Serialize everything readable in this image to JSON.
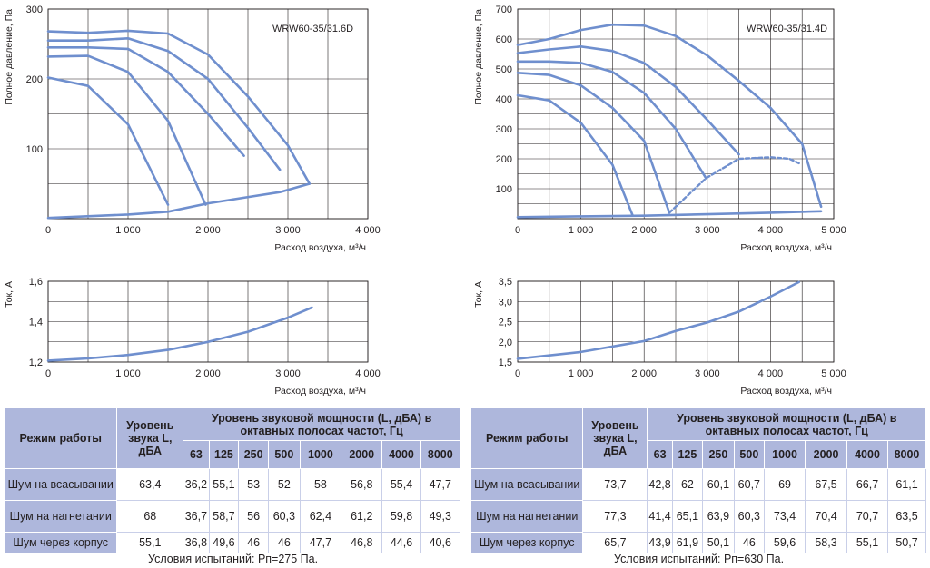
{
  "chart_data": [
    {
      "type": "line",
      "title": "WRW60-35/31.6D",
      "xlabel": "Расход воздуха, м³/ч",
      "ylabel": "Полное давление, Па",
      "xlim": [
        0,
        4000
      ],
      "ylim": [
        0,
        300
      ],
      "xticks": [
        "0",
        "1 000",
        "2 000",
        "3 000",
        "4 000"
      ],
      "yticks": [
        "100",
        "200",
        "300"
      ],
      "grid": true,
      "series": [
        {
          "values": [
            [
              0,
              268
            ],
            [
              500,
              266
            ],
            [
              1000,
              269
            ],
            [
              1500,
              265
            ],
            [
              2000,
              235
            ],
            [
              2500,
              175
            ],
            [
              3000,
              105
            ],
            [
              3270,
              50
            ]
          ]
        },
        {
          "values": [
            [
              0,
              255
            ],
            [
              500,
              255
            ],
            [
              1000,
              258
            ],
            [
              1500,
              240
            ],
            [
              2000,
              200
            ],
            [
              2500,
              130
            ],
            [
              2900,
              70
            ]
          ]
        },
        {
          "values": [
            [
              0,
              245
            ],
            [
              500,
              245
            ],
            [
              1000,
              243
            ],
            [
              1500,
              210
            ],
            [
              2000,
              150
            ],
            [
              2450,
              90
            ]
          ]
        },
        {
          "values": [
            [
              0,
              232
            ],
            [
              500,
              233
            ],
            [
              1000,
              210
            ],
            [
              1500,
              140
            ],
            [
              1970,
              20
            ]
          ]
        },
        {
          "values": [
            [
              0,
              202
            ],
            [
              500,
              190
            ],
            [
              1000,
              135
            ],
            [
              1500,
              20
            ]
          ]
        },
        {
          "values": [
            [
              0,
              1
            ],
            [
              1000,
              6
            ],
            [
              1500,
              10
            ],
            [
              2000,
              22
            ],
            [
              2450,
              30
            ],
            [
              2900,
              38
            ],
            [
              3270,
              50
            ]
          ]
        }
      ]
    },
    {
      "type": "line",
      "title": "WRW60-35/31.4D",
      "xlabel": "Расход воздуха, м³/ч",
      "ylabel": "Полное давление, Па",
      "xlim": [
        0,
        5000
      ],
      "ylim": [
        0,
        700
      ],
      "xticks": [
        "0",
        "1 000",
        "2 000",
        "3 000",
        "4 000",
        "5 000"
      ],
      "yticks": [
        "100",
        "200",
        "300",
        "400",
        "500",
        "600",
        "700"
      ],
      "grid": true,
      "series": [
        {
          "values": [
            [
              0,
              580
            ],
            [
              500,
              600
            ],
            [
              1000,
              630
            ],
            [
              1500,
              648
            ],
            [
              2000,
              645
            ],
            [
              2500,
              610
            ],
            [
              3000,
              545
            ],
            [
              3500,
              460
            ],
            [
              4000,
              370
            ],
            [
              4500,
              250
            ],
            [
              4800,
              40
            ]
          ]
        },
        {
          "values": [
            [
              0,
              553
            ],
            [
              500,
              565
            ],
            [
              1000,
              575
            ],
            [
              1500,
              560
            ],
            [
              2000,
              520
            ],
            [
              2500,
              440
            ],
            [
              3000,
              330
            ],
            [
              3500,
              215
            ]
          ]
        },
        {
          "values": [
            [
              0,
              525
            ],
            [
              500,
              525
            ],
            [
              1000,
              520
            ],
            [
              1500,
              490
            ],
            [
              2000,
              420
            ],
            [
              2500,
              300
            ],
            [
              2980,
              135
            ]
          ]
        },
        {
          "values": [
            [
              0,
              487
            ],
            [
              500,
              480
            ],
            [
              1000,
              445
            ],
            [
              1500,
              370
            ],
            [
              2000,
              260
            ],
            [
              2400,
              20
            ]
          ]
        },
        {
          "values": [
            [
              0,
              412
            ],
            [
              500,
              395
            ],
            [
              1000,
              320
            ],
            [
              1500,
              180
            ],
            [
              1820,
              10
            ]
          ]
        },
        {
          "style": "dashed",
          "values": [
            [
              2400,
              20
            ],
            [
              2980,
              135
            ],
            [
              3500,
              200
            ],
            [
              4000,
              205
            ],
            [
              4300,
              200
            ],
            [
              4450,
              185
            ]
          ]
        },
        {
          "values": [
            [
              0,
              5
            ],
            [
              1000,
              8
            ],
            [
              2000,
              10
            ],
            [
              3000,
              15
            ],
            [
              4000,
              20
            ],
            [
              4800,
              25
            ]
          ]
        }
      ]
    },
    {
      "type": "line",
      "xlabel": "Расход воздуха, м³/ч",
      "ylabel": "Ток, А",
      "xlim": [
        0,
        4000
      ],
      "ylim": [
        1.2,
        1.6
      ],
      "xticks": [
        "0",
        "1 000",
        "2 000",
        "3 000",
        "4 000"
      ],
      "yticks": [
        "1,2",
        "1,4",
        "1,6"
      ],
      "grid": true,
      "series": [
        {
          "values": [
            [
              0,
              1.207
            ],
            [
              500,
              1.218
            ],
            [
              1000,
              1.235
            ],
            [
              1500,
              1.26
            ],
            [
              2000,
              1.3
            ],
            [
              2500,
              1.35
            ],
            [
              3000,
              1.42
            ],
            [
              3300,
              1.47
            ]
          ]
        }
      ]
    },
    {
      "type": "line",
      "xlabel": "Расход воздуха, м³/ч",
      "ylabel": "Ток, А",
      "xlim": [
        0,
        5000
      ],
      "ylim": [
        1.5,
        3.5
      ],
      "xticks": [
        "0",
        "1 000",
        "2 000",
        "3 000",
        "4 000",
        "5 000"
      ],
      "yticks": [
        "1,5",
        "2,0",
        "2,5",
        "3,0",
        "3,5"
      ],
      "grid": true,
      "series": [
        {
          "values": [
            [
              0,
              1.58
            ],
            [
              1000,
              1.75
            ],
            [
              2000,
              2.02
            ],
            [
              2500,
              2.27
            ],
            [
              3000,
              2.48
            ],
            [
              3500,
              2.75
            ],
            [
              4000,
              3.12
            ],
            [
              4450,
              3.48
            ]
          ]
        }
      ]
    }
  ],
  "tables": [
    {
      "h_mode": "Режим работы",
      "h_level": "Уровень звука L, дБА",
      "h_power": "Уровень звуковой мощности (L, дБА) в октавных полосах частот, Гц",
      "freqs": [
        "63",
        "125",
        "250",
        "500",
        "1000",
        "2000",
        "4000",
        "8000"
      ],
      "rows": [
        {
          "mode": "Шум на всасывании",
          "level": "63,4",
          "values": [
            "36,2",
            "55,1",
            "53",
            "52",
            "58",
            "56,8",
            "55,4",
            "47,7"
          ]
        },
        {
          "mode": "Шум на нагнетании",
          "level": "68",
          "values": [
            "36,7",
            "58,7",
            "56",
            "60,3",
            "62,4",
            "61,2",
            "59,8",
            "49,3"
          ]
        },
        {
          "mode": "Шум через корпус",
          "level": "55,1",
          "values": [
            "36,8",
            "49,6",
            "46",
            "46",
            "47,7",
            "46,8",
            "44,6",
            "40,6"
          ]
        }
      ],
      "condition": "Условия испытаний: Pп=275 Па."
    },
    {
      "h_mode": "Режим работы",
      "h_level": "Уровень звука L, дБА",
      "h_power": "Уровень звуковой мощности (L, дБА) в октавных полосах частот, Гц",
      "freqs": [
        "63",
        "125",
        "250",
        "500",
        "1000",
        "2000",
        "4000",
        "8000"
      ],
      "rows": [
        {
          "mode": "Шум на всасывании",
          "level": "73,7",
          "values": [
            "42,8",
            "62",
            "60,1",
            "60,7",
            "69",
            "67,5",
            "66,7",
            "61,1"
          ]
        },
        {
          "mode": "Шум на нагнетании",
          "level": "77,3",
          "values": [
            "41,4",
            "65,1",
            "63,9",
            "60,3",
            "73,4",
            "70,4",
            "70,7",
            "63,5"
          ]
        },
        {
          "mode": "Шум через корпус",
          "level": "65,7",
          "values": [
            "43,9",
            "61,9",
            "50,1",
            "46",
            "59,6",
            "58,3",
            "55,1",
            "50,7"
          ]
        }
      ],
      "condition": "Условия испытаний: Pп=630 Па."
    }
  ],
  "colors": {
    "curve": "#6f8fce",
    "header": "#aeb7dc"
  }
}
